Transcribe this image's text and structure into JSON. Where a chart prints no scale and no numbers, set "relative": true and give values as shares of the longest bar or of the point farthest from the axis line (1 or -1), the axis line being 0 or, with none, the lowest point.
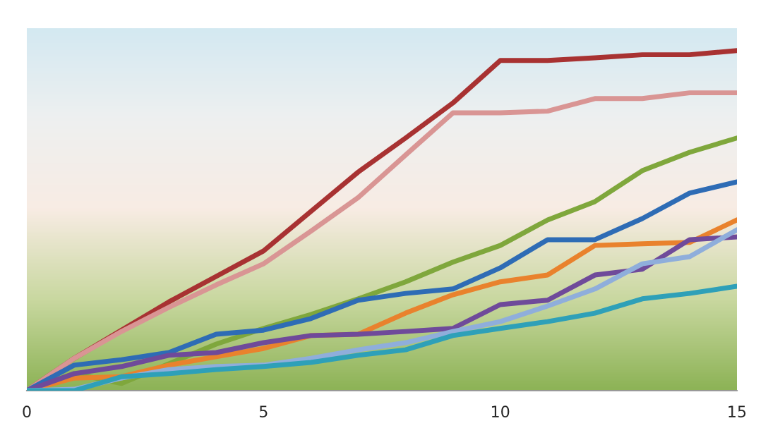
{
  "chart_data": {
    "type": "line",
    "relative": true,
    "x": [
      0,
      1,
      2,
      3,
      4,
      5,
      6,
      7,
      8,
      9,
      10,
      11,
      12,
      13,
      14,
      15
    ],
    "xlim": [
      0,
      15
    ],
    "xticks": [
      0,
      5,
      10,
      15
    ],
    "tick_labels": "x",
    "grid": false,
    "legend": false,
    "marker": "none",
    "line_style": "solid",
    "series": [
      {
        "color": "#a83232",
        "values": [
          0,
          0.095,
          0.178,
          0.261,
          0.336,
          0.411,
          0.527,
          0.643,
          0.743,
          0.846,
          0.971,
          0.971,
          0.979,
          0.988,
          0.988,
          1
        ]
      },
      {
        "color": "#d99594",
        "values": [
          0,
          0.095,
          0.174,
          0.245,
          0.311,
          0.373,
          0.469,
          0.568,
          0.693,
          0.817,
          0.817,
          0.822,
          0.859,
          0.859,
          0.876,
          0.876
        ]
      },
      {
        "color": "#7fa73c",
        "values": [
          0,
          0.05,
          0.021,
          0.079,
          0.137,
          0.183,
          0.224,
          0.27,
          0.32,
          0.378,
          0.427,
          0.502,
          0.556,
          0.647,
          0.701,
          0.743
        ]
      },
      {
        "color": "#2e6cb5",
        "values": [
          0,
          0.075,
          0.091,
          0.112,
          0.166,
          0.178,
          0.212,
          0.266,
          0.286,
          0.299,
          0.361,
          0.444,
          0.444,
          0.506,
          0.581,
          0.614
        ]
      },
      {
        "color": "#e9822d",
        "values": [
          0,
          0.037,
          0.041,
          0.075,
          0.1,
          0.124,
          0.162,
          0.166,
          0.228,
          0.282,
          0.32,
          0.34,
          0.427,
          0.432,
          0.436,
          0.502
        ]
      },
      {
        "color": "#6f4a9a",
        "values": [
          0,
          0.05,
          0.071,
          0.104,
          0.112,
          0.141,
          0.162,
          0.166,
          0.174,
          0.183,
          0.253,
          0.266,
          0.34,
          0.357,
          0.444,
          0.452
        ]
      },
      {
        "color": "#8faedb",
        "values": [
          0,
          0.004,
          0.037,
          0.062,
          0.071,
          0.075,
          0.095,
          0.12,
          0.141,
          0.174,
          0.203,
          0.249,
          0.299,
          0.373,
          0.394,
          0.473
        ]
      },
      {
        "color": "#2ea0b8",
        "values": [
          0,
          0,
          0.041,
          0.05,
          0.062,
          0.071,
          0.083,
          0.104,
          0.12,
          0.162,
          0.183,
          0.203,
          0.228,
          0.27,
          0.286,
          0.307
        ]
      }
    ]
  }
}
